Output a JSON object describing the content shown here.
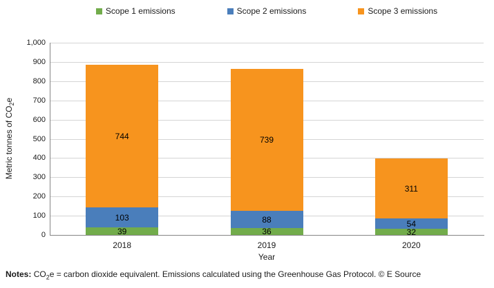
{
  "chart_data": {
    "type": "bar",
    "stacked": true,
    "categories": [
      "2018",
      "2019",
      "2020"
    ],
    "series": [
      {
        "name": "Scope 1 emissions",
        "color": "#72AC4B",
        "values": [
          39,
          36,
          32
        ]
      },
      {
        "name": "Scope 2 emissions",
        "color": "#4A7EBB",
        "values": [
          103,
          88,
          54
        ]
      },
      {
        "name": "Scope 3 emissions",
        "color": "#F7941E",
        "values": [
          744,
          739,
          311
        ]
      }
    ],
    "xlabel": "Year",
    "ylabel": "Metric tonnes of CO2e",
    "ylabel_parts": {
      "pre": "Metric tonnes of CO",
      "sub": "2",
      "post": "e"
    },
    "ylim": [
      0,
      1000
    ],
    "ytick_step": 100,
    "ytick_labels": [
      "0",
      "100",
      "200",
      "300",
      "400",
      "500",
      "600",
      "700",
      "800",
      "900",
      "1,000"
    ],
    "grid": true,
    "legend_position": "top",
    "value_labels_shown": true
  },
  "notes": {
    "label": "Notes:",
    "co": "CO",
    "sub": "2",
    "rest": "e = carbon dioxide equivalent. Emissions calculated using the Greenhouse Gas Protocol. © E Source"
  }
}
